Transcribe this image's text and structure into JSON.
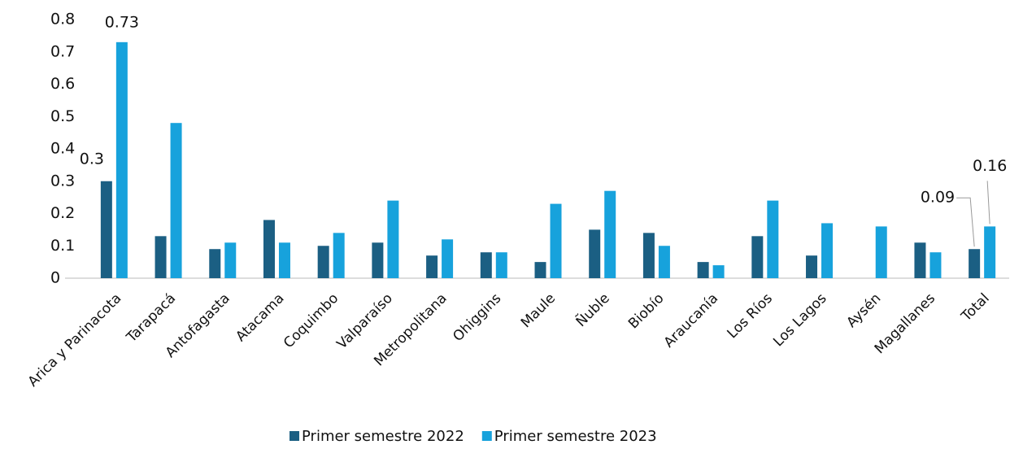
{
  "chart_data": {
    "type": "bar",
    "categories": [
      "Arica y Parinacota",
      "Tarapacá",
      "Antofagasta",
      "Atacama",
      "Coquimbo",
      "Valparaíso",
      "Metropolitana",
      "Ohiggins",
      "Maule",
      "Ñuble",
      "Biobío",
      "Araucanía",
      "Los Ríos",
      "Los Lagos",
      "Aysén",
      "Magallanes",
      "Total"
    ],
    "series": [
      {
        "name": "Primer semestre 2022",
        "color": "#1b5f83",
        "values": [
          0.3,
          0.13,
          0.09,
          0.18,
          0.1,
          0.11,
          0.07,
          0.08,
          0.05,
          0.15,
          0.14,
          0.05,
          0.13,
          0.07,
          null,
          0.11,
          0.09
        ],
        "value_labels": [
          "0.3",
          null,
          null,
          null,
          null,
          null,
          null,
          null,
          null,
          null,
          null,
          null,
          null,
          null,
          null,
          null,
          "0.09"
        ]
      },
      {
        "name": "Primer semestre 2023",
        "color": "#17a2dc",
        "values": [
          0.73,
          0.48,
          0.11,
          0.11,
          0.14,
          0.24,
          0.12,
          0.08,
          0.23,
          0.27,
          0.1,
          0.04,
          0.24,
          0.17,
          0.16,
          0.08,
          0.16
        ],
        "value_labels": [
          "0.73",
          null,
          null,
          null,
          null,
          null,
          null,
          null,
          null,
          null,
          null,
          null,
          null,
          null,
          null,
          null,
          "0.16"
        ]
      }
    ],
    "ylim": [
      0,
      0.8
    ],
    "yticks": [
      0,
      0.1,
      0.2,
      0.3,
      0.4,
      0.5,
      0.6,
      0.7,
      0.8
    ],
    "grid": false,
    "legend": "bottom"
  }
}
